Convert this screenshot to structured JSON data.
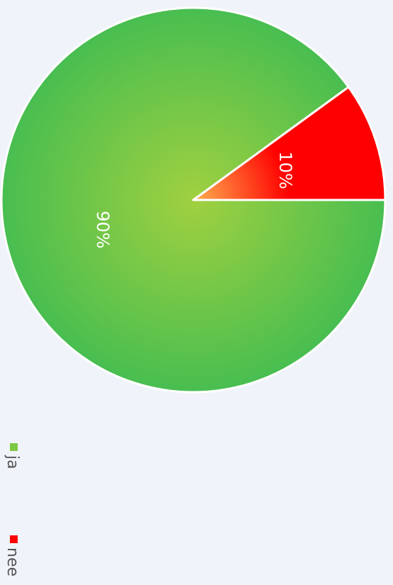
{
  "chart_data": {
    "type": "pie",
    "categories": [
      "ja",
      "nee"
    ],
    "values": [
      90,
      10
    ],
    "value_labels": [
      "90%",
      "10%"
    ],
    "colors": [
      "#7dc843",
      "#ff0000"
    ]
  }
}
